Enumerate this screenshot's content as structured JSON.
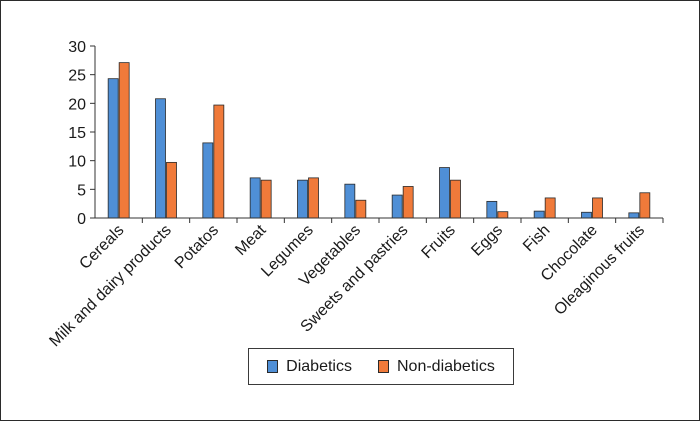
{
  "chart_data": {
    "type": "bar",
    "categories": [
      "Cereals",
      "Milk and dairy products",
      "Potatos",
      "Meat",
      "Legumes",
      "Vegetables",
      "Sweets and pastries",
      "Fruits",
      "Eggs",
      "Fish",
      "Chocolate",
      "Oleaginous fruits"
    ],
    "series": [
      {
        "name": "Diabetics",
        "color": "#4f8fd6",
        "values": [
          24.3,
          20.8,
          13.1,
          7.0,
          6.6,
          5.9,
          4.0,
          8.8,
          2.9,
          1.2,
          1.0,
          0.9
        ]
      },
      {
        "name": "Non-diabetics",
        "color": "#f07a3a",
        "values": [
          27.1,
          9.7,
          19.7,
          6.6,
          7.0,
          3.1,
          5.5,
          6.6,
          1.1,
          3.5,
          3.5,
          4.4
        ]
      }
    ],
    "yticks": [
      0,
      5,
      10,
      15,
      20,
      25,
      30
    ],
    "ylim": [
      0,
      30
    ],
    "grid": false,
    "legend_position": "bottom"
  }
}
